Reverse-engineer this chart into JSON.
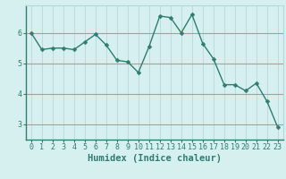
{
  "x": [
    0,
    1,
    2,
    3,
    4,
    5,
    6,
    7,
    8,
    9,
    10,
    11,
    12,
    13,
    14,
    15,
    16,
    17,
    18,
    19,
    20,
    21,
    22,
    23
  ],
  "y": [
    6.0,
    5.45,
    5.5,
    5.5,
    5.45,
    5.7,
    5.95,
    5.6,
    5.1,
    5.05,
    4.7,
    5.55,
    6.55,
    6.5,
    6.0,
    6.6,
    5.65,
    5.15,
    4.3,
    4.3,
    4.1,
    4.35,
    3.75,
    2.9
  ],
  "line_color": "#2e7d6e",
  "marker": "D",
  "marker_size": 2.5,
  "bg_color": "#d6f0ef",
  "grid_h_color": "#f08080",
  "grid_v_color": "#b8d8d8",
  "xlabel": "Humidex (Indice chaleur)",
  "xlim": [
    -0.5,
    23.5
  ],
  "ylim": [
    2.5,
    6.9
  ],
  "yticks": [
    3,
    4,
    5,
    6
  ],
  "xticks": [
    0,
    1,
    2,
    3,
    4,
    5,
    6,
    7,
    8,
    9,
    10,
    11,
    12,
    13,
    14,
    15,
    16,
    17,
    18,
    19,
    20,
    21,
    22,
    23
  ],
  "tick_fontsize": 6,
  "xlabel_fontsize": 7.5
}
